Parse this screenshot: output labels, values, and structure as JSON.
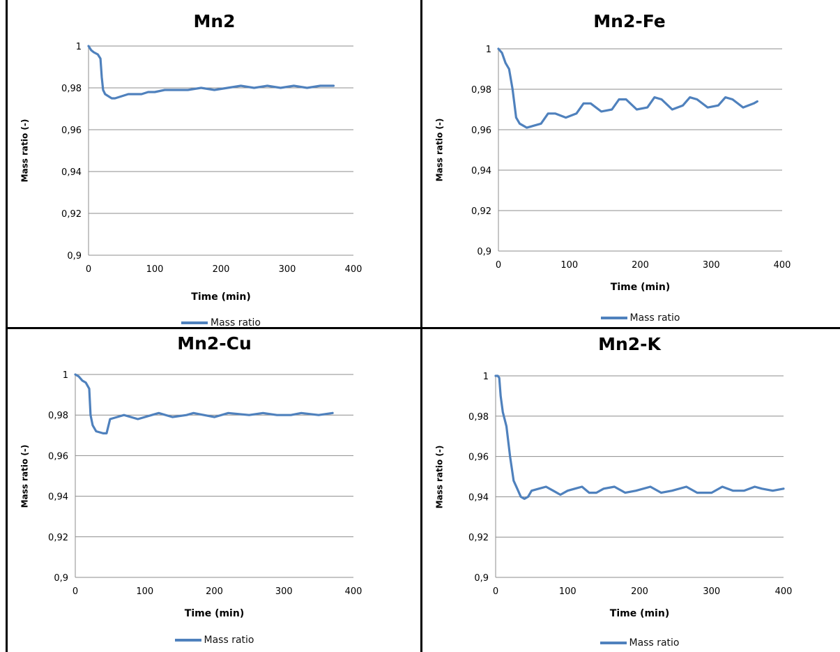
{
  "colors": {
    "series": "#4f81bd",
    "gridline": "#8c8c8c",
    "axis": "#8c8c8c",
    "border": "#000000"
  },
  "chart_data": [
    {
      "type": "line",
      "title": "Mn2",
      "xlabel": "Time (min)",
      "ylabel": "Mass ratio (-)",
      "xlim": [
        0,
        400
      ],
      "ylim": [
        0.9,
        1.0
      ],
      "xticks": [
        "0",
        "100",
        "200",
        "300",
        "400"
      ],
      "yticks": [
        "0,9",
        "0,92",
        "0,94",
        "0,96",
        "0,98",
        "1"
      ],
      "grid": "horizontal",
      "legend": "bottom",
      "series": [
        {
          "name": "Mass ratio",
          "x": [
            0,
            4,
            8,
            14,
            18,
            20,
            22,
            25,
            30,
            35,
            40,
            50,
            60,
            70,
            80,
            90,
            100,
            115,
            130,
            150,
            170,
            190,
            210,
            230,
            250,
            270,
            290,
            310,
            330,
            350,
            370
          ],
          "y": [
            1.0,
            0.998,
            0.997,
            0.996,
            0.994,
            0.985,
            0.979,
            0.977,
            0.976,
            0.975,
            0.975,
            0.976,
            0.977,
            0.977,
            0.977,
            0.978,
            0.978,
            0.979,
            0.979,
            0.979,
            0.98,
            0.979,
            0.98,
            0.981,
            0.98,
            0.981,
            0.98,
            0.981,
            0.98,
            0.981,
            0.981
          ]
        }
      ]
    },
    {
      "type": "line",
      "title": "Mn2-Fe",
      "xlabel": "Time (min)",
      "ylabel": "Mass  ratio (-)",
      "xlim": [
        0,
        400
      ],
      "ylim": [
        0.9,
        1.0
      ],
      "xticks": [
        "0",
        "100",
        "200",
        "300",
        "400"
      ],
      "yticks": [
        "0,9",
        "0,92",
        "0,94",
        "0,96",
        "0,98",
        "1"
      ],
      "grid": "horizontal",
      "legend": "bottom",
      "series": [
        {
          "name": "Mass ratio",
          "x": [
            0,
            5,
            10,
            15,
            20,
            25,
            30,
            35,
            40,
            50,
            60,
            70,
            80,
            95,
            110,
            120,
            130,
            145,
            160,
            170,
            180,
            195,
            210,
            220,
            230,
            245,
            260,
            270,
            280,
            295,
            310,
            320,
            330,
            345,
            360,
            365
          ],
          "y": [
            1.0,
            0.998,
            0.993,
            0.99,
            0.98,
            0.966,
            0.963,
            0.962,
            0.961,
            0.962,
            0.963,
            0.968,
            0.968,
            0.966,
            0.968,
            0.973,
            0.973,
            0.969,
            0.97,
            0.975,
            0.975,
            0.97,
            0.971,
            0.976,
            0.975,
            0.97,
            0.972,
            0.976,
            0.975,
            0.971,
            0.972,
            0.976,
            0.975,
            0.971,
            0.973,
            0.974
          ]
        }
      ]
    },
    {
      "type": "line",
      "title": "Mn2-Cu",
      "xlabel": "Time (min)",
      "ylabel": "Mass ratio (-)",
      "xlim": [
        0,
        400
      ],
      "ylim": [
        0.9,
        1.0
      ],
      "xticks": [
        "0",
        "100",
        "200",
        "300",
        "400"
      ],
      "yticks": [
        "0,9",
        "0,92",
        "0,94",
        "0,96",
        "0,98",
        "1"
      ],
      "grid": "horizontal",
      "legend": "bottom",
      "series": [
        {
          "name": "Mass ratio",
          "x": [
            0,
            5,
            10,
            15,
            20,
            22,
            25,
            30,
            40,
            45,
            50,
            60,
            70,
            90,
            110,
            120,
            140,
            160,
            170,
            200,
            220,
            250,
            270,
            290,
            310,
            325,
            350,
            370
          ],
          "y": [
            1.0,
            0.999,
            0.997,
            0.996,
            0.993,
            0.98,
            0.975,
            0.972,
            0.971,
            0.971,
            0.978,
            0.979,
            0.98,
            0.978,
            0.98,
            0.981,
            0.979,
            0.98,
            0.981,
            0.979,
            0.981,
            0.98,
            0.981,
            0.98,
            0.98,
            0.981,
            0.98,
            0.981
          ]
        }
      ]
    },
    {
      "type": "line",
      "title": "Mn2-K",
      "xlabel": "Time (min)",
      "ylabel": "Mass ratio (-)",
      "xlim": [
        0,
        400
      ],
      "ylim": [
        0.9,
        1.0
      ],
      "xticks": [
        "0",
        "100",
        "200",
        "300",
        "400"
      ],
      "yticks": [
        "0,9",
        "0,92",
        "0,94",
        "0,96",
        "0,98",
        "1"
      ],
      "grid": "horizontal",
      "legend": "bottom",
      "series": [
        {
          "name": "Mass ratio",
          "x": [
            0,
            3,
            5,
            7,
            10,
            15,
            20,
            25,
            30,
            35,
            40,
            45,
            50,
            60,
            70,
            80,
            90,
            100,
            110,
            120,
            130,
            140,
            150,
            165,
            180,
            195,
            215,
            230,
            245,
            265,
            280,
            300,
            315,
            330,
            345,
            360,
            370,
            385,
            400
          ],
          "y": [
            1.0,
            1.0,
            0.999,
            0.99,
            0.982,
            0.975,
            0.96,
            0.948,
            0.944,
            0.94,
            0.939,
            0.94,
            0.943,
            0.944,
            0.945,
            0.943,
            0.941,
            0.943,
            0.944,
            0.945,
            0.942,
            0.942,
            0.944,
            0.945,
            0.942,
            0.943,
            0.945,
            0.942,
            0.943,
            0.945,
            0.942,
            0.942,
            0.945,
            0.943,
            0.943,
            0.945,
            0.944,
            0.943,
            0.944
          ]
        }
      ]
    }
  ]
}
